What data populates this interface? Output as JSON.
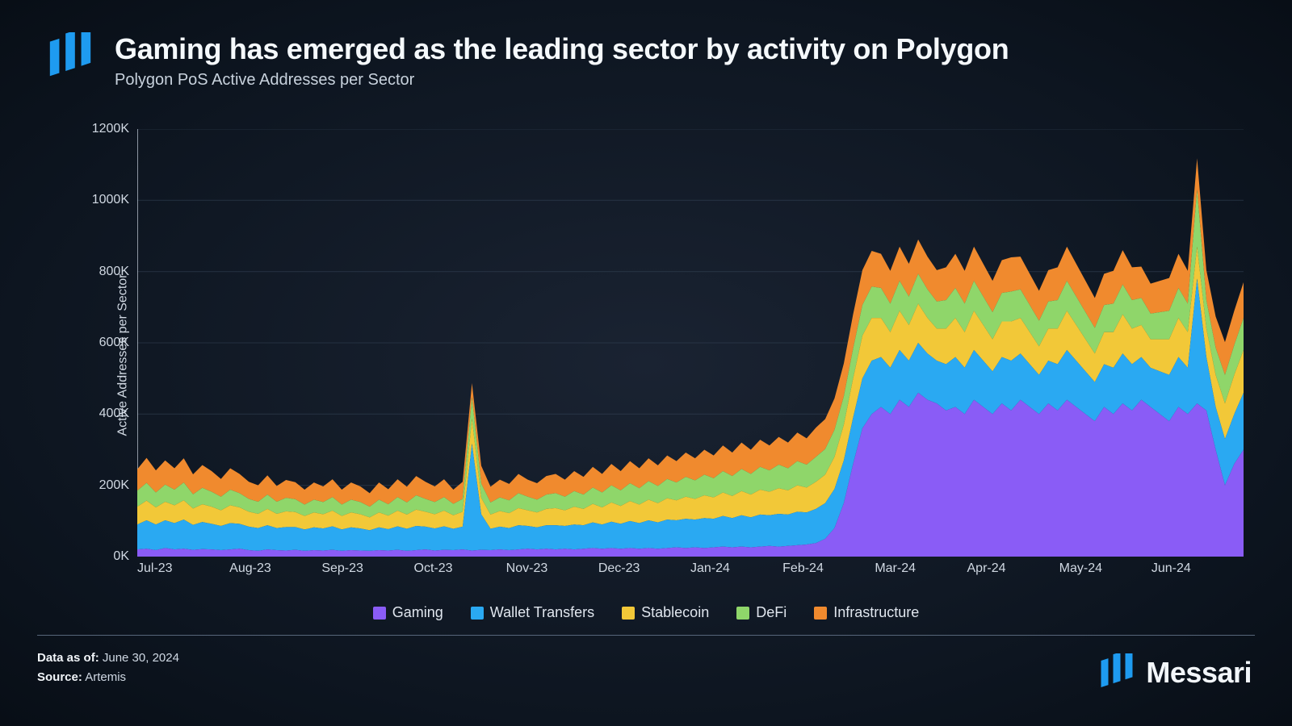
{
  "header": {
    "title": "Gaming has emerged as the leading sector by activity on Polygon",
    "subtitle": "Polygon PoS Active Addresses per Sector",
    "logo_color": "#1e9bf0"
  },
  "chart": {
    "type": "area-stacked",
    "y_axis_title": "Active Addresses per Sector",
    "ylim": [
      0,
      1200
    ],
    "y_ticks": [
      0,
      200,
      400,
      600,
      800,
      1000,
      1200
    ],
    "y_tick_labels": [
      "0K",
      "200K",
      "400K",
      "600K",
      "800K",
      "1000K",
      "1200K"
    ],
    "x_labels": [
      "Jul-23",
      "Aug-23",
      "Sep-23",
      "Oct-23",
      "Nov-23",
      "Dec-23",
      "Jan-24",
      "Feb-24",
      "Mar-24",
      "Apr-24",
      "May-24",
      "Jun-24"
    ],
    "n_points": 120,
    "grid_color": "#3a4a5e",
    "axis_color": "#c8d2dd",
    "background": "transparent",
    "series": [
      {
        "key": "gaming",
        "label": "Gaming",
        "color": "#8a5cf6"
      },
      {
        "key": "wallet",
        "label": "Wallet Transfers",
        "color": "#2aa9f2"
      },
      {
        "key": "stablecoin",
        "label": "Stablecoin",
        "color": "#f2c838"
      },
      {
        "key": "defi",
        "label": "DeFi",
        "color": "#8fd66a"
      },
      {
        "key": "infrastructure",
        "label": "Infrastructure",
        "color": "#f08a2e"
      }
    ],
    "data": {
      "gaming": [
        20,
        22,
        18,
        24,
        20,
        22,
        19,
        21,
        20,
        18,
        20,
        22,
        18,
        16,
        20,
        18,
        17,
        19,
        16,
        18,
        17,
        19,
        16,
        18,
        17,
        16,
        18,
        17,
        19,
        16,
        18,
        20,
        17,
        19,
        18,
        20,
        17,
        19,
        18,
        20,
        18,
        20,
        22,
        20,
        22,
        20,
        22,
        20,
        22,
        24,
        22,
        24,
        22,
        24,
        22,
        24,
        22,
        24,
        26,
        24,
        26,
        24,
        26,
        28,
        26,
        28,
        26,
        28,
        30,
        28,
        30,
        32,
        34,
        38,
        50,
        80,
        150,
        260,
        360,
        400,
        420,
        400,
        440,
        420,
        460,
        440,
        430,
        410,
        420,
        400,
        440,
        420,
        400,
        430,
        410,
        440,
        420,
        400,
        430,
        410,
        440,
        420,
        400,
        380,
        420,
        400,
        430,
        410,
        440,
        420,
        400,
        380,
        420,
        400,
        430,
        410,
        300,
        200,
        260,
        300
      ],
      "wallet": [
        70,
        80,
        72,
        78,
        74,
        82,
        70,
        76,
        72,
        68,
        74,
        70,
        66,
        64,
        68,
        62,
        66,
        64,
        60,
        64,
        62,
        66,
        60,
        64,
        62,
        58,
        64,
        60,
        66,
        62,
        68,
        64,
        62,
        66,
        60,
        64,
        300,
        100,
        60,
        64,
        62,
        68,
        64,
        62,
        66,
        68,
        64,
        70,
        66,
        72,
        68,
        74,
        70,
        76,
        72,
        78,
        74,
        80,
        76,
        82,
        78,
        84,
        80,
        86,
        82,
        88,
        84,
        90,
        86,
        92,
        88,
        94,
        90,
        96,
        100,
        110,
        120,
        130,
        140,
        150,
        140,
        130,
        140,
        130,
        140,
        130,
        120,
        130,
        140,
        130,
        140,
        130,
        120,
        130,
        140,
        130,
        120,
        110,
        120,
        130,
        140,
        130,
        120,
        110,
        120,
        130,
        140,
        130,
        120,
        110,
        120,
        130,
        140,
        130,
        350,
        150,
        120,
        130,
        140,
        160
      ],
      "stablecoin": [
        50,
        55,
        48,
        52,
        50,
        54,
        46,
        50,
        48,
        44,
        50,
        46,
        42,
        40,
        46,
        40,
        44,
        42,
        38,
        42,
        40,
        44,
        38,
        42,
        40,
        36,
        42,
        38,
        44,
        40,
        46,
        42,
        40,
        44,
        38,
        42,
        70,
        46,
        40,
        44,
        42,
        48,
        44,
        42,
        46,
        48,
        44,
        50,
        46,
        52,
        48,
        54,
        50,
        56,
        52,
        58,
        54,
        60,
        56,
        62,
        58,
        64,
        60,
        66,
        62,
        68,
        64,
        70,
        66,
        72,
        68,
        74,
        70,
        76,
        80,
        90,
        100,
        110,
        120,
        120,
        110,
        100,
        110,
        100,
        110,
        100,
        90,
        100,
        110,
        100,
        110,
        100,
        90,
        100,
        110,
        100,
        90,
        80,
        90,
        100,
        110,
        100,
        90,
        80,
        90,
        100,
        110,
        100,
        90,
        80,
        90,
        100,
        110,
        100,
        90,
        80,
        90,
        100,
        110,
        120
      ],
      "defi": [
        45,
        50,
        42,
        48,
        44,
        50,
        40,
        46,
        42,
        38,
        44,
        40,
        36,
        34,
        40,
        34,
        38,
        36,
        32,
        36,
        34,
        38,
        32,
        36,
        34,
        30,
        36,
        32,
        38,
        34,
        40,
        36,
        34,
        38,
        32,
        36,
        60,
        40,
        34,
        38,
        36,
        42,
        38,
        36,
        40,
        42,
        38,
        44,
        40,
        46,
        42,
        48,
        44,
        50,
        46,
        52,
        48,
        54,
        50,
        56,
        52,
        58,
        54,
        60,
        56,
        62,
        58,
        64,
        60,
        66,
        62,
        68,
        64,
        70,
        72,
        76,
        80,
        84,
        86,
        88,
        84,
        80,
        84,
        80,
        84,
        80,
        76,
        80,
        84,
        80,
        84,
        80,
        76,
        80,
        84,
        80,
        76,
        72,
        76,
        80,
        84,
        80,
        76,
        72,
        76,
        80,
        84,
        80,
        76,
        72,
        76,
        80,
        84,
        80,
        160,
        80,
        76,
        80,
        84,
        90
      ],
      "infrastructure": [
        60,
        70,
        62,
        68,
        60,
        68,
        56,
        64,
        58,
        50,
        60,
        54,
        48,
        46,
        54,
        44,
        50,
        48,
        42,
        48,
        44,
        50,
        42,
        48,
        44,
        38,
        48,
        42,
        50,
        44,
        54,
        48,
        44,
        50,
        40,
        48,
        40,
        50,
        44,
        50,
        46,
        54,
        48,
        46,
        52,
        54,
        48,
        56,
        50,
        58,
        52,
        60,
        54,
        62,
        56,
        64,
        58,
        66,
        60,
        68,
        62,
        70,
        64,
        72,
        66,
        74,
        68,
        76,
        70,
        78,
        72,
        80,
        74,
        82,
        84,
        88,
        92,
        96,
        98,
        100,
        96,
        92,
        96,
        92,
        96,
        92,
        88,
        92,
        96,
        92,
        96,
        92,
        88,
        92,
        96,
        92,
        88,
        84,
        88,
        92,
        96,
        92,
        88,
        84,
        88,
        92,
        96,
        92,
        88,
        84,
        88,
        92,
        96,
        92,
        88,
        84,
        88,
        92,
        96,
        100
      ]
    }
  },
  "legend_order": [
    "gaming",
    "wallet",
    "stablecoin",
    "defi",
    "infrastructure"
  ],
  "footer": {
    "data_as_of_label": "Data as of:",
    "data_as_of": " June 30, 2024",
    "source_label": "Source:",
    "source": " Artemis"
  },
  "brand": {
    "name": "Messari",
    "logo_color": "#1e9bf0"
  }
}
